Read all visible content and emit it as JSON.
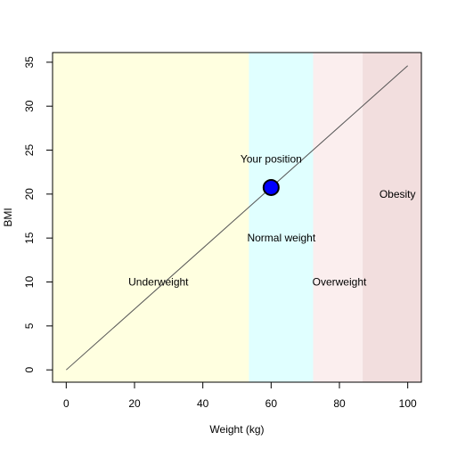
{
  "chart_data": {
    "type": "line",
    "title": "",
    "xlabel": "Weight (kg)",
    "ylabel": "BMI",
    "xlim": [
      -4,
      104
    ],
    "ylim": [
      -1.4,
      36.1
    ],
    "xticks": [
      0,
      20,
      40,
      60,
      80,
      100
    ],
    "yticks": [
      0,
      5,
      10,
      15,
      20,
      25,
      30,
      35
    ],
    "grid": false,
    "regions": [
      {
        "name": "Underweight",
        "x_start": -4,
        "x_end": 53.5,
        "color": "#ffffe0",
        "label_x": 27,
        "label_y": 10
      },
      {
        "name": "Normal weight",
        "x_start": 53.5,
        "x_end": 72.3,
        "color": "#e0ffff",
        "label_x": 63,
        "label_y": 15
      },
      {
        "name": "Overweight",
        "x_start": 72.3,
        "x_end": 86.8,
        "color": "#fbeeee",
        "label_x": 80,
        "label_y": 10
      },
      {
        "name": "Obesity",
        "x_start": 86.8,
        "x_end": 104,
        "color": "#f2dede",
        "label_x": 97,
        "label_y": 20
      }
    ],
    "series": [
      {
        "x": [
          0,
          100
        ],
        "y": [
          0,
          34.6
        ],
        "color": "#555555"
      }
    ],
    "point": {
      "label": "Your position",
      "x": 60,
      "y": 20.75,
      "label_y": 24,
      "color": "#0000ff"
    }
  }
}
